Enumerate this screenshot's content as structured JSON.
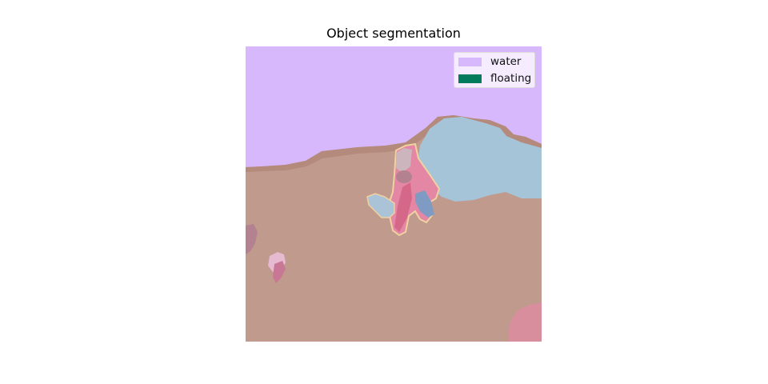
{
  "figure": {
    "title": "Object segmentation"
  },
  "legend": {
    "items": [
      {
        "label": "water",
        "color": "#d7b8fd"
      },
      {
        "label": "floating",
        "color": "#017b5c"
      }
    ]
  },
  "colors": {
    "water": "#d7b8fd",
    "ground": "#bf9a8d",
    "ground_edge": "#b38a7c",
    "pool": "#a6c4d8",
    "floating": "#017b5c",
    "pink_object": "#e387a4",
    "pink_dark": "#d56888",
    "blue_object": "#7f9bc4",
    "light_blue_object": "#aac3d7",
    "outline": "#f0d2a0",
    "mauve": "#b3818f",
    "light_pink": "#e6bad0",
    "magenta": "#c87894",
    "corner_pink": "#d88e9c"
  }
}
